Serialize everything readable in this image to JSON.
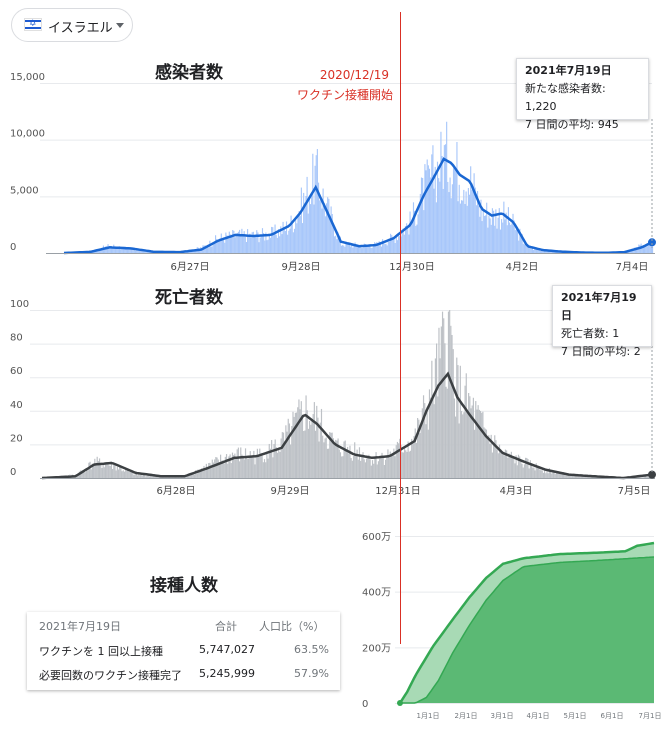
{
  "country_selector": {
    "label": "イスラエル"
  },
  "cases_chart": {
    "title": "感染者数",
    "y_ticks": [
      "15,000",
      "10,000",
      "5,000",
      "0"
    ],
    "x_ticks": [
      "6月27日",
      "9月28日",
      "12月30日",
      "4月2日",
      "7月4日"
    ],
    "tooltip": {
      "date": "2021年7月19日",
      "line1": "新たな感染者数: 1,220",
      "line2": "7 日間の平均: 945"
    }
  },
  "deaths_chart": {
    "title": "死亡者数",
    "y_ticks": [
      "100",
      "80",
      "60",
      "40",
      "20",
      "0"
    ],
    "x_ticks": [
      "6月28日",
      "9月29日",
      "12月31日",
      "4月3日",
      "7月5日"
    ],
    "tooltip": {
      "date": "2021年7月19日",
      "line1": "死亡者数: 1",
      "line2": "7 日間の平均: 2"
    }
  },
  "annotation": {
    "date": "2020/12/19",
    "text": "ワクチン接種開始"
  },
  "vaccination": {
    "title": "接種人数",
    "header": {
      "date": "2021年7月19日",
      "total": "合計",
      "ratio": "人口比（%）"
    },
    "rows": [
      {
        "label": "ワクチンを 1 回以上接種",
        "total": "5,747,027",
        "ratio": "63.5%"
      },
      {
        "label": "必要回数のワクチン接種完了",
        "total": "5,245,999",
        "ratio": "57.9%"
      }
    ],
    "y_ticks": [
      "600万",
      "400万",
      "200万",
      "0"
    ],
    "x_ticks": [
      "1月1日",
      "2月1日",
      "3月1日",
      "4月1日",
      "5月1日",
      "6月1日",
      "7月1日"
    ]
  },
  "colors": {
    "cases_line": "#1a67d2",
    "cases_bar": "#a8c7fa",
    "deaths_line": "#3c4043",
    "deaths_bar": "#bdc1c6",
    "vacc_dark": "#5bb974",
    "vacc_light": "#a8dab5",
    "annotation": "#d93025"
  },
  "chart_data": [
    {
      "type": "area",
      "title": "感染者数",
      "x_range": [
        "2020-02-21",
        "2021-07-19"
      ],
      "ylim": [
        0,
        15000
      ],
      "x_labels": [
        "6月27日",
        "9月28日",
        "12月30日",
        "4月2日",
        "7月4日"
      ],
      "series": [
        {
          "name": "新たな感染者数",
          "x": [
            "2020-02-21",
            "2020-03-15",
            "2020-04-01",
            "2020-04-20",
            "2020-05-10",
            "2020-06-01",
            "2020-06-20",
            "2020-07-05",
            "2020-07-20",
            "2020-08-05",
            "2020-08-20",
            "2020-09-05",
            "2020-09-15",
            "2020-09-28",
            "2020-10-05",
            "2020-10-20",
            "2020-11-05",
            "2020-11-20",
            "2020-12-05",
            "2020-12-20",
            "2021-01-01",
            "2021-01-10",
            "2021-01-18",
            "2021-01-25",
            "2021-02-01",
            "2021-02-10",
            "2021-02-20",
            "2021-03-01",
            "2021-03-10",
            "2021-03-20",
            "2021-04-01",
            "2021-04-15",
            "2021-05-01",
            "2021-05-20",
            "2021-06-10",
            "2021-06-25",
            "2021-07-10",
            "2021-07-19"
          ],
          "values": [
            0,
            150,
            700,
            350,
            60,
            40,
            500,
            1400,
            1700,
            1700,
            1800,
            2600,
            4500,
            7500,
            5000,
            900,
            700,
            800,
            1500,
            3000,
            6200,
            7800,
            9300,
            8600,
            7600,
            6800,
            4000,
            3600,
            3700,
            2600,
            500,
            250,
            120,
            40,
            20,
            90,
            700,
            1220
          ]
        },
        {
          "name": "7 日間の平均",
          "x": [
            "2020-02-21",
            "2020-03-15",
            "2020-04-01",
            "2020-04-20",
            "2020-05-10",
            "2020-06-01",
            "2020-06-20",
            "2020-07-05",
            "2020-07-20",
            "2020-08-05",
            "2020-08-20",
            "2020-09-05",
            "2020-09-15",
            "2020-09-28",
            "2020-10-05",
            "2020-10-20",
            "2020-11-05",
            "2020-11-20",
            "2020-12-05",
            "2020-12-20",
            "2021-01-01",
            "2021-01-10",
            "2021-01-18",
            "2021-01-25",
            "2021-02-01",
            "2021-02-10",
            "2021-02-20",
            "2021-03-01",
            "2021-03-10",
            "2021-03-20",
            "2021-04-01",
            "2021-04-15",
            "2021-05-01",
            "2021-05-20",
            "2021-06-10",
            "2021-06-25",
            "2021-07-10",
            "2021-07-19"
          ],
          "values": [
            0,
            100,
            500,
            400,
            100,
            80,
            300,
            1100,
            1600,
            1500,
            1600,
            2400,
            3600,
            5800,
            4300,
            1000,
            600,
            700,
            1300,
            2500,
            5200,
            6800,
            8300,
            7900,
            6900,
            6300,
            3900,
            3300,
            3500,
            2700,
            600,
            250,
            120,
            40,
            20,
            80,
            500,
            945
          ]
        }
      ]
    },
    {
      "type": "area",
      "title": "死亡者数",
      "x_range": [
        "2020-02-21",
        "2021-07-19"
      ],
      "ylim": [
        0,
        100
      ],
      "x_labels": [
        "6月28日",
        "9月29日",
        "12月31日",
        "4月3日",
        "7月5日"
      ],
      "series": [
        {
          "name": "死亡者数",
          "x": [
            "2020-02-21",
            "2020-03-20",
            "2020-04-05",
            "2020-04-20",
            "2020-05-10",
            "2020-06-01",
            "2020-06-20",
            "2020-07-10",
            "2020-08-01",
            "2020-08-20",
            "2020-09-10",
            "2020-09-29",
            "2020-10-10",
            "2020-10-25",
            "2020-11-10",
            "2020-11-25",
            "2020-12-10",
            "2020-12-31",
            "2021-01-10",
            "2021-01-20",
            "2021-01-28",
            "2021-02-05",
            "2021-02-15",
            "2021-03-01",
            "2021-03-15",
            "2021-04-01",
            "2021-04-20",
            "2021-05-10",
            "2021-06-01",
            "2021-06-25",
            "2021-07-19"
          ],
          "values": [
            0,
            2,
            10,
            8,
            2,
            1,
            1,
            8,
            15,
            14,
            22,
            42,
            35,
            20,
            18,
            12,
            15,
            25,
            45,
            70,
            95,
            55,
            45,
            28,
            15,
            10,
            5,
            2,
            1,
            0,
            1
          ]
        },
        {
          "name": "7 日間の平均",
          "x": [
            "2020-02-21",
            "2020-03-20",
            "2020-04-05",
            "2020-04-20",
            "2020-05-10",
            "2020-06-01",
            "2020-06-20",
            "2020-07-10",
            "2020-08-01",
            "2020-08-20",
            "2020-09-10",
            "2020-09-29",
            "2020-10-10",
            "2020-10-25",
            "2020-11-10",
            "2020-11-25",
            "2020-12-10",
            "2020-12-31",
            "2021-01-10",
            "2021-01-20",
            "2021-01-28",
            "2021-02-05",
            "2021-02-15",
            "2021-03-01",
            "2021-03-15",
            "2021-04-01",
            "2021-04-20",
            "2021-05-10",
            "2021-06-01",
            "2021-06-25",
            "2021-07-19"
          ],
          "values": [
            0,
            1,
            8,
            9,
            3,
            1,
            1,
            6,
            12,
            13,
            18,
            38,
            32,
            20,
            14,
            12,
            13,
            22,
            40,
            55,
            62,
            48,
            38,
            25,
            15,
            10,
            5,
            2,
            1,
            0,
            2
          ]
        }
      ]
    },
    {
      "type": "area",
      "title": "接種人数",
      "x_range": [
        "2020-12-19",
        "2021-07-19"
      ],
      "ylim": [
        0,
        6000000
      ],
      "x_labels": [
        "1月1日",
        "2月1日",
        "3月1日",
        "4月1日",
        "5月1日",
        "6月1日",
        "7月1日"
      ],
      "series": [
        {
          "name": "ワクチンを 1 回以上接種",
          "x": [
            "2020-12-19",
            "2020-12-25",
            "2021-01-01",
            "2021-01-15",
            "2021-02-01",
            "2021-02-15",
            "2021-03-01",
            "2021-03-15",
            "2021-04-01",
            "2021-05-01",
            "2021-06-01",
            "2021-06-25",
            "2021-07-05",
            "2021-07-19"
          ],
          "values": [
            0,
            400000,
            1000000,
            2000000,
            3000000,
            3800000,
            4500000,
            5000000,
            5200000,
            5350000,
            5400000,
            5450000,
            5650000,
            5747027
          ]
        },
        {
          "name": "必要回数のワクチン接種完了",
          "x": [
            "2020-12-19",
            "2021-01-01",
            "2021-01-10",
            "2021-01-20",
            "2021-02-01",
            "2021-02-15",
            "2021-03-01",
            "2021-03-15",
            "2021-04-01",
            "2021-05-01",
            "2021-06-01",
            "2021-07-01",
            "2021-07-19"
          ],
          "values": [
            0,
            0,
            200000,
            800000,
            1800000,
            2800000,
            3700000,
            4400000,
            4900000,
            5050000,
            5120000,
            5200000,
            5245999
          ]
        }
      ]
    }
  ]
}
